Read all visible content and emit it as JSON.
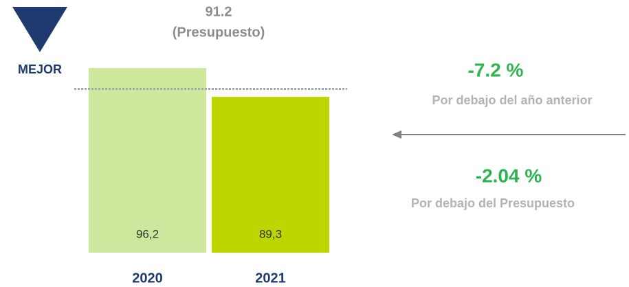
{
  "chart_data": {
    "type": "bar",
    "categories": [
      "2020",
      "2021"
    ],
    "values": [
      96.2,
      89.3
    ],
    "value_labels": [
      "96,2",
      "89,3"
    ],
    "colors": [
      "#cde89c",
      "#bed600"
    ],
    "ylim": [
      52,
      100
    ],
    "budget": {
      "value": 91.2,
      "label": "(Presupuesto)"
    },
    "annotations": [
      {
        "text": "MEJOR",
        "color": "#1f3a6e"
      },
      {
        "text": "-7.2 %",
        "color": "#2eb34f"
      },
      {
        "text": "Por debajo del año anterior",
        "color": "#b3b3b3"
      },
      {
        "text": "-2.04 %",
        "color": "#2eb34f"
      },
      {
        "text": "Por debajo del Presupuesto",
        "color": "#b3b3b3"
      }
    ]
  }
}
